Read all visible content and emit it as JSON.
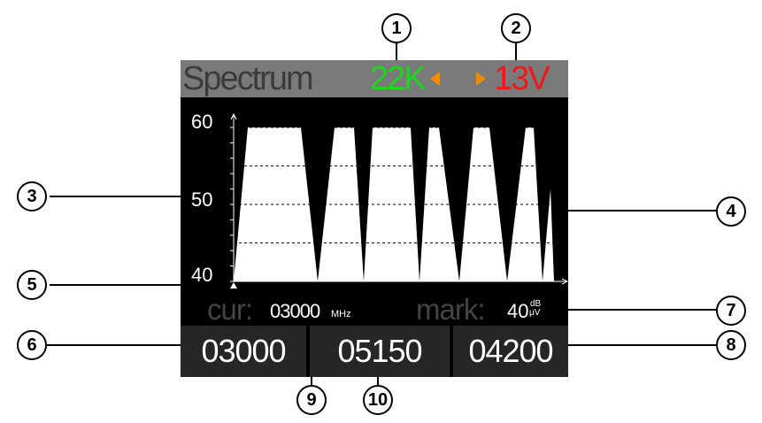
{
  "screen": {
    "title": "Spectrum",
    "indicator_22k": {
      "text": "22K",
      "color": "#1fd41f"
    },
    "indicator_13v": {
      "text": "13V",
      "color": "#ee1a1a"
    },
    "arrow_color": "#f08a00",
    "y_axis": {
      "labels": [
        "60",
        "50",
        "40"
      ],
      "max": 60,
      "min": 40
    }
  },
  "chart_data": {
    "type": "area",
    "x_range": [
      0,
      365
    ],
    "ylim": [
      40,
      60
    ],
    "grid": true,
    "points": [
      {
        "x": 0,
        "y": 40
      },
      {
        "x": 16,
        "y": 60
      },
      {
        "x": 76,
        "y": 60
      },
      {
        "x": 95,
        "y": 40
      },
      {
        "x": 114,
        "y": 60
      },
      {
        "x": 136,
        "y": 60
      },
      {
        "x": 147,
        "y": 40
      },
      {
        "x": 157,
        "y": 60
      },
      {
        "x": 200,
        "y": 60
      },
      {
        "x": 210,
        "y": 40
      },
      {
        "x": 221,
        "y": 60
      },
      {
        "x": 232,
        "y": 60
      },
      {
        "x": 255,
        "y": 40
      },
      {
        "x": 271,
        "y": 60
      },
      {
        "x": 289,
        "y": 60
      },
      {
        "x": 309,
        "y": 40
      },
      {
        "x": 330,
        "y": 60
      },
      {
        "x": 339,
        "y": 60
      },
      {
        "x": 349,
        "y": 40
      },
      {
        "x": 358,
        "y": 52
      },
      {
        "x": 362,
        "y": 40
      }
    ]
  },
  "info": {
    "cur_label": "cur:",
    "cur_value": "03000",
    "cur_unit": "MHz",
    "mark_label": "mark:",
    "mark_value": "40",
    "mark_unit_top": "dB",
    "mark_unit_bottom": "µV"
  },
  "bottom": {
    "start_freq": "03000",
    "center_freq": "05150",
    "end_freq": "04200"
  },
  "callouts": [
    "1",
    "2",
    "3",
    "4",
    "5",
    "6",
    "7",
    "8",
    "9",
    "10"
  ]
}
